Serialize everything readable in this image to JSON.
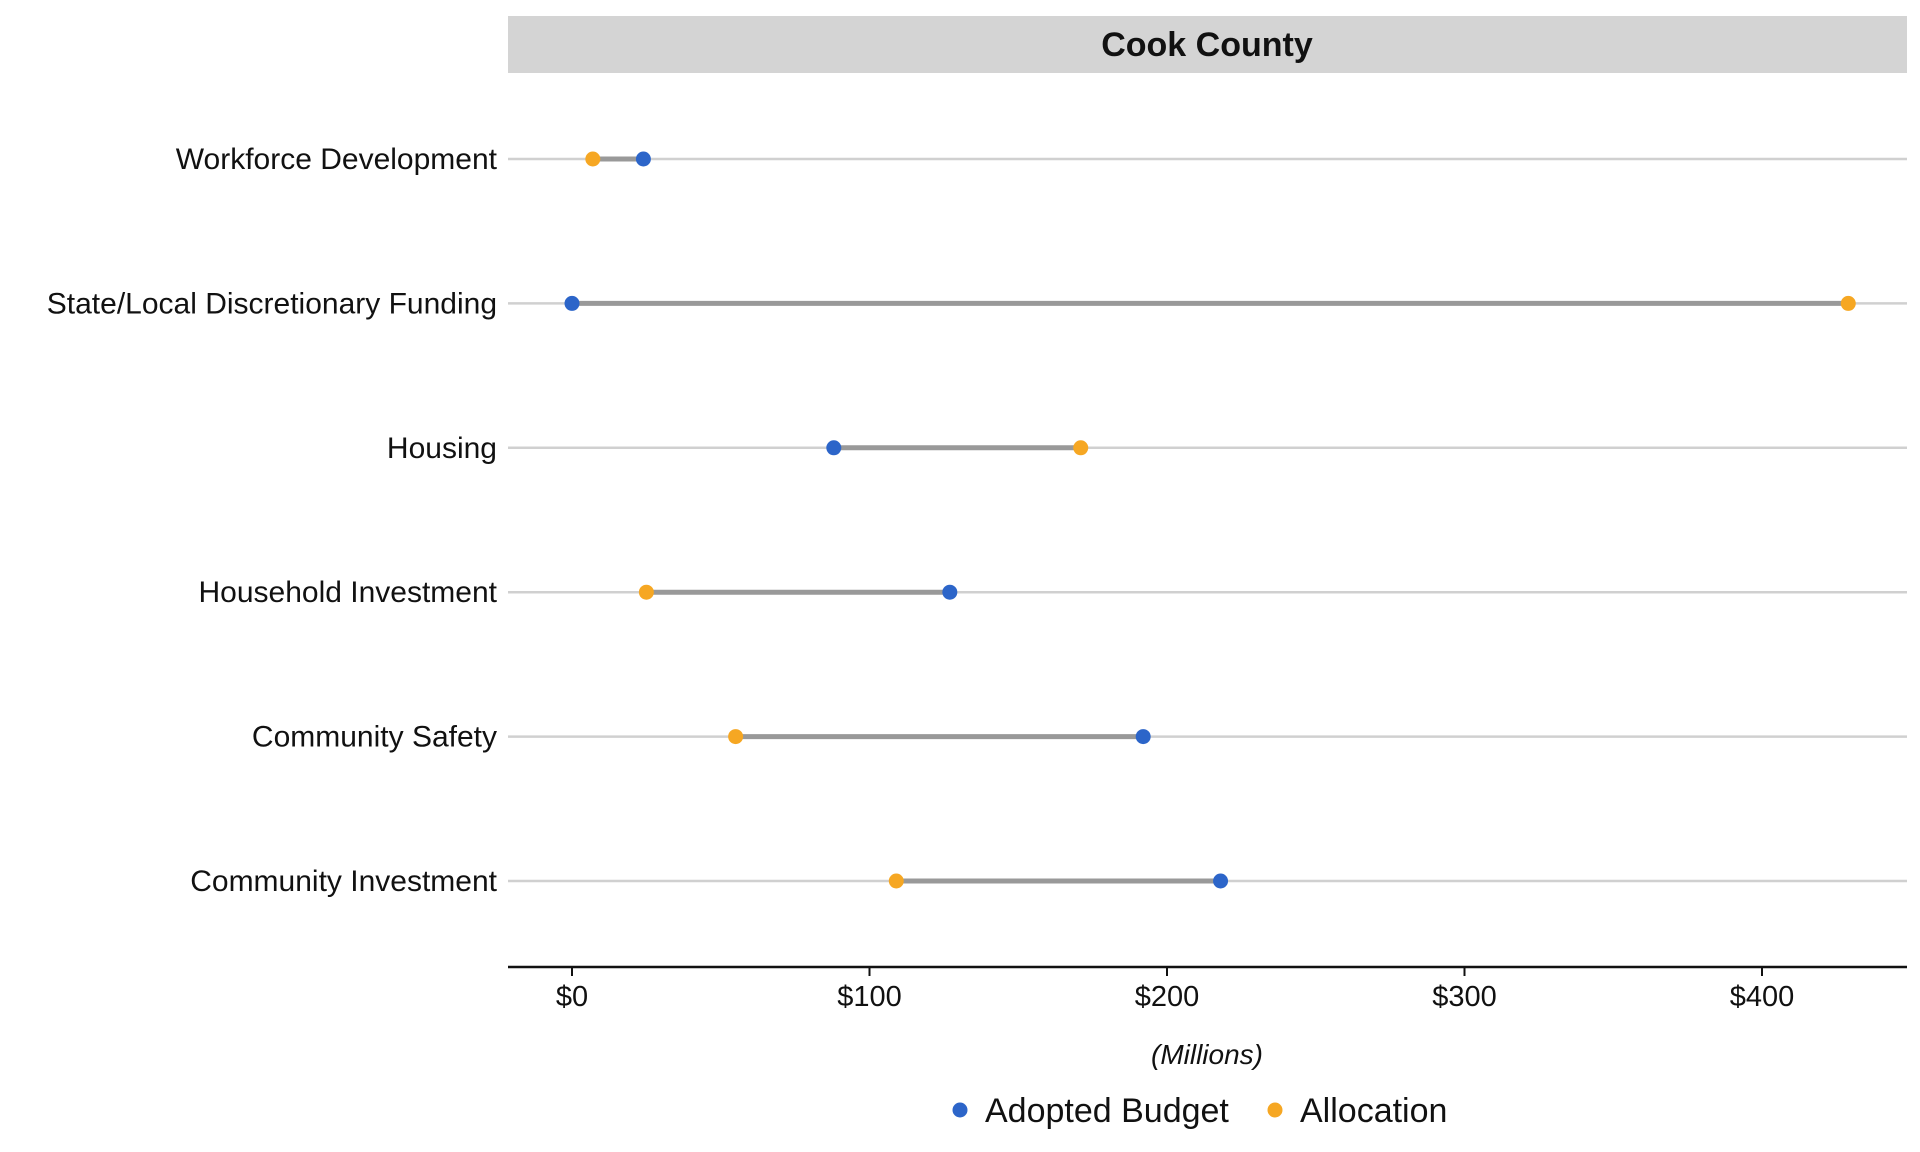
{
  "chart_data": {
    "type": "dumbbell",
    "title": "Cook County",
    "xlabel": "(Millions)",
    "ylabel": "",
    "xlim": [
      -21,
      450
    ],
    "x_ticks": [
      0,
      100,
      200,
      300,
      400
    ],
    "x_tick_labels": [
      "$0",
      "$100",
      "$200",
      "$300",
      "$400"
    ],
    "categories": [
      "Workforce Development",
      "State/Local Discretionary Funding",
      "Housing",
      "Household Investment",
      "Community Safety",
      "Community Investment"
    ],
    "series": [
      {
        "name": "Adopted Budget",
        "color": "#2c65c9",
        "values": [
          24,
          0,
          88,
          127,
          192,
          218
        ]
      },
      {
        "name": "Allocation",
        "color": "#f6a723",
        "values": [
          7,
          429,
          171,
          25,
          55,
          109
        ]
      }
    ],
    "grid": "horizontal",
    "legend_position": "bottom"
  }
}
